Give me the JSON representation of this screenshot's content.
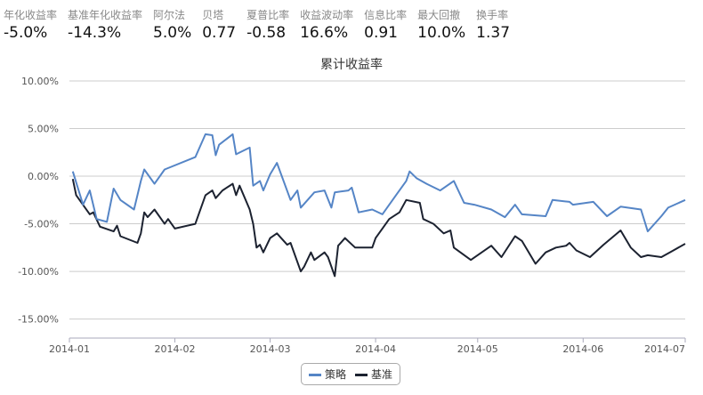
{
  "stats": [
    {
      "label": "年化收益率",
      "value": "-5.0%"
    },
    {
      "label": "基准年化收益率",
      "value": "-14.3%"
    },
    {
      "label": "阿尔法",
      "value": "5.0%"
    },
    {
      "label": "贝塔",
      "value": "0.77"
    },
    {
      "label": "夏普比率",
      "value": "-0.58"
    },
    {
      "label": "收益波动率",
      "value": "16.6%"
    },
    {
      "label": "信息比率",
      "value": "0.91"
    },
    {
      "label": "最大回撤",
      "value": "10.0%"
    },
    {
      "label": "换手率",
      "value": "1.37"
    }
  ],
  "chart_data": {
    "type": "line",
    "title": "累计收益率",
    "ylim": [
      -17,
      10
    ],
    "yticks": [
      "10.00%",
      "5.00%",
      "0.00%",
      "-5.00%",
      "-10.00%",
      "-15.00%"
    ],
    "ytick_values": [
      10,
      5,
      0,
      -5,
      -10,
      -15
    ],
    "xlim": [
      "2014-01-01",
      "2014-07-01"
    ],
    "xticks": [
      "2014-01",
      "2014-02",
      "2014-03",
      "2014-04",
      "2014-05",
      "2014-06",
      "2014-07"
    ],
    "grid": true,
    "legend_position": "bottom",
    "colors": {
      "策略": "#5585c6",
      "基准": "#1c2230"
    },
    "series": [
      {
        "name": "策略",
        "points": [
          [
            "2014-01-02",
            0.5
          ],
          [
            "2014-01-05",
            -3
          ],
          [
            "2014-01-07",
            -1.5
          ],
          [
            "2014-01-09",
            -4.5
          ],
          [
            "2014-01-12",
            -4.8
          ],
          [
            "2014-01-14",
            -1.3
          ],
          [
            "2014-01-16",
            -2.5
          ],
          [
            "2014-01-20",
            -3.5
          ],
          [
            "2014-01-22",
            -0.5
          ],
          [
            "2014-01-23",
            0.7
          ],
          [
            "2014-01-26",
            -0.8
          ],
          [
            "2014-01-29",
            0.7
          ],
          [
            "2014-02-07",
            2.0
          ],
          [
            "2014-02-10",
            4.4
          ],
          [
            "2014-02-12",
            4.3
          ],
          [
            "2014-02-13",
            2.2
          ],
          [
            "2014-02-14",
            3.3
          ],
          [
            "2014-02-18",
            4.4
          ],
          [
            "2014-02-19",
            2.3
          ],
          [
            "2014-02-23",
            3.0
          ],
          [
            "2014-02-24",
            -1.0
          ],
          [
            "2014-02-26",
            -0.5
          ],
          [
            "2014-02-27",
            -1.5
          ],
          [
            "2014-03-01",
            0.2
          ],
          [
            "2014-03-03",
            1.4
          ],
          [
            "2014-03-07",
            -2.5
          ],
          [
            "2014-03-09",
            -1.5
          ],
          [
            "2014-03-10",
            -3.3
          ],
          [
            "2014-03-14",
            -1.7
          ],
          [
            "2014-03-17",
            -1.5
          ],
          [
            "2014-03-19",
            -3.3
          ],
          [
            "2014-03-20",
            -1.7
          ],
          [
            "2014-03-24",
            -1.5
          ],
          [
            "2014-03-25",
            -1.2
          ],
          [
            "2014-03-27",
            -3.8
          ],
          [
            "2014-03-31",
            -3.5
          ],
          [
            "2014-04-03",
            -4.0
          ],
          [
            "2014-04-07",
            -2.0
          ],
          [
            "2014-04-10",
            -0.5
          ],
          [
            "2014-04-11",
            0.5
          ],
          [
            "2014-04-13",
            -0.2
          ],
          [
            "2014-04-16",
            -0.8
          ],
          [
            "2014-04-20",
            -1.5
          ],
          [
            "2014-04-24",
            -0.5
          ],
          [
            "2014-04-27",
            -2.8
          ],
          [
            "2014-04-30",
            -3.0
          ],
          [
            "2014-05-05",
            -3.5
          ],
          [
            "2014-05-09",
            -4.3
          ],
          [
            "2014-05-12",
            -3.0
          ],
          [
            "2014-05-14",
            -4.0
          ],
          [
            "2014-05-21",
            -4.2
          ],
          [
            "2014-05-23",
            -2.5
          ],
          [
            "2014-05-28",
            -2.7
          ],
          [
            "2014-05-29",
            -3.0
          ],
          [
            "2014-06-04",
            -2.7
          ],
          [
            "2014-06-08",
            -4.2
          ],
          [
            "2014-06-12",
            -3.2
          ],
          [
            "2014-06-18",
            -3.5
          ],
          [
            "2014-06-20",
            -5.8
          ],
          [
            "2014-06-24",
            -4.2
          ],
          [
            "2014-06-26",
            -3.3
          ],
          [
            "2014-07-01",
            -2.5
          ]
        ]
      },
      {
        "name": "基准",
        "points": [
          [
            "2014-01-02",
            -0.3
          ],
          [
            "2014-01-03",
            -2.0
          ],
          [
            "2014-01-07",
            -4.0
          ],
          [
            "2014-01-08",
            -3.8
          ],
          [
            "2014-01-10",
            -5.3
          ],
          [
            "2014-01-14",
            -5.8
          ],
          [
            "2014-01-15",
            -5.2
          ],
          [
            "2014-01-16",
            -6.3
          ],
          [
            "2014-01-21",
            -7.0
          ],
          [
            "2014-01-22",
            -6.0
          ],
          [
            "2014-01-23",
            -3.8
          ],
          [
            "2014-01-24",
            -4.3
          ],
          [
            "2014-01-26",
            -3.5
          ],
          [
            "2014-01-29",
            -5.0
          ],
          [
            "2014-01-30",
            -4.5
          ],
          [
            "2014-02-01",
            -5.5
          ],
          [
            "2014-02-07",
            -5.0
          ],
          [
            "2014-02-10",
            -2.0
          ],
          [
            "2014-02-12",
            -1.5
          ],
          [
            "2014-02-13",
            -2.3
          ],
          [
            "2014-02-15",
            -1.5
          ],
          [
            "2014-02-18",
            -0.8
          ],
          [
            "2014-02-19",
            -2.0
          ],
          [
            "2014-02-20",
            -1.0
          ],
          [
            "2014-02-23",
            -3.5
          ],
          [
            "2014-02-24",
            -5.0
          ],
          [
            "2014-02-25",
            -7.5
          ],
          [
            "2014-02-26",
            -7.2
          ],
          [
            "2014-02-27",
            -8.0
          ],
          [
            "2014-03-01",
            -6.5
          ],
          [
            "2014-03-03",
            -6.0
          ],
          [
            "2014-03-06",
            -7.2
          ],
          [
            "2014-03-07",
            -7.0
          ],
          [
            "2014-03-10",
            -10.0
          ],
          [
            "2014-03-11",
            -9.5
          ],
          [
            "2014-03-13",
            -8.0
          ],
          [
            "2014-03-14",
            -8.8
          ],
          [
            "2014-03-17",
            -8.0
          ],
          [
            "2014-03-18",
            -8.5
          ],
          [
            "2014-03-20",
            -10.5
          ],
          [
            "2014-03-21",
            -7.3
          ],
          [
            "2014-03-23",
            -6.5
          ],
          [
            "2014-03-26",
            -7.5
          ],
          [
            "2014-03-31",
            -7.5
          ],
          [
            "2014-04-01",
            -6.5
          ],
          [
            "2014-04-05",
            -4.5
          ],
          [
            "2014-04-08",
            -3.8
          ],
          [
            "2014-04-10",
            -2.5
          ],
          [
            "2014-04-14",
            -2.8
          ],
          [
            "2014-04-15",
            -4.5
          ],
          [
            "2014-04-18",
            -5.0
          ],
          [
            "2014-04-21",
            -6.0
          ],
          [
            "2014-04-23",
            -5.7
          ],
          [
            "2014-04-24",
            -7.5
          ],
          [
            "2014-04-29",
            -8.8
          ],
          [
            "2014-05-05",
            -7.3
          ],
          [
            "2014-05-08",
            -8.5
          ],
          [
            "2014-05-12",
            -6.3
          ],
          [
            "2014-05-14",
            -6.8
          ],
          [
            "2014-05-18",
            -9.2
          ],
          [
            "2014-05-21",
            -8.0
          ],
          [
            "2014-05-24",
            -7.5
          ],
          [
            "2014-05-27",
            -7.3
          ],
          [
            "2014-05-28",
            -7.0
          ],
          [
            "2014-05-30",
            -7.8
          ],
          [
            "2014-06-03",
            -8.5
          ],
          [
            "2014-06-07",
            -7.2
          ],
          [
            "2014-06-12",
            -5.7
          ],
          [
            "2014-06-15",
            -7.5
          ],
          [
            "2014-06-18",
            -8.5
          ],
          [
            "2014-06-20",
            -8.3
          ],
          [
            "2014-06-24",
            -8.5
          ],
          [
            "2014-06-27",
            -7.9
          ],
          [
            "2014-07-01",
            -7.1
          ]
        ]
      }
    ]
  }
}
